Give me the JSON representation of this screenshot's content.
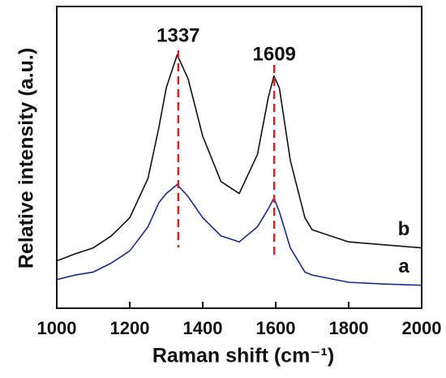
{
  "chart_data": {
    "type": "line",
    "x_label": "Raman shift (cm⁻¹)",
    "y_label": "Relative intensity (a.u.)",
    "x": [
      1000,
      1050,
      1100,
      1150,
      1200,
      1250,
      1280,
      1300,
      1330,
      1360,
      1400,
      1450,
      1500,
      1550,
      1580,
      1595,
      1610,
      1640,
      1680,
      1700,
      1800,
      1900,
      2000
    ],
    "series": [
      {
        "name": "b",
        "color": "#111111",
        "values": [
          15.7,
          18,
          20,
          24,
          30,
          43,
          60,
          73,
          84,
          76,
          57,
          42,
          38,
          51,
          70,
          77,
          73,
          49,
          30,
          26,
          22,
          21,
          20
        ]
      },
      {
        "name": "a",
        "color": "#1a2a8a",
        "values": [
          9.5,
          11,
          12,
          15,
          19,
          27,
          35,
          38,
          41,
          37,
          30,
          24,
          22,
          27,
          33,
          36.5,
          32,
          20,
          12,
          11,
          8.6,
          8,
          7.6
        ]
      }
    ],
    "annotations": [
      {
        "label": "1337",
        "x": 1333
      },
      {
        "label": "1609",
        "x": 1596
      }
    ],
    "annotation_color": "#e02020",
    "xlim": [
      1000,
      2000
    ],
    "xticks": [
      1000,
      1200,
      1400,
      1600,
      1800,
      2000
    ],
    "ylim": [
      0,
      100
    ]
  }
}
